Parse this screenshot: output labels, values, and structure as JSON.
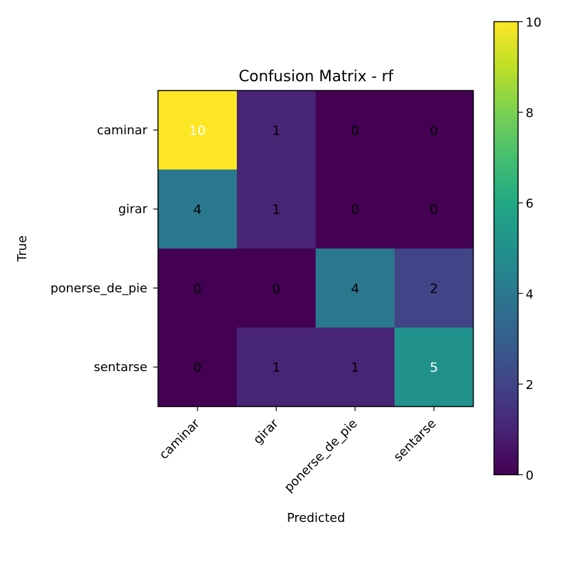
{
  "chart_data": {
    "type": "heatmap",
    "title": "Confusion Matrix - rf",
    "xlabel": "Predicted",
    "ylabel": "True",
    "x_categories": [
      "caminar",
      "girar",
      "ponerse_de_pie",
      "sentarse"
    ],
    "y_categories": [
      "caminar",
      "girar",
      "ponerse_de_pie",
      "sentarse"
    ],
    "values": [
      [
        10,
        1,
        0,
        0
      ],
      [
        4,
        1,
        0,
        0
      ],
      [
        0,
        0,
        4,
        2
      ],
      [
        0,
        1,
        1,
        5
      ]
    ],
    "colorscale": "viridis",
    "value_range": [
      0,
      10
    ],
    "colorbar_ticks": [
      "0",
      "2",
      "4",
      "6",
      "8",
      "10"
    ]
  }
}
